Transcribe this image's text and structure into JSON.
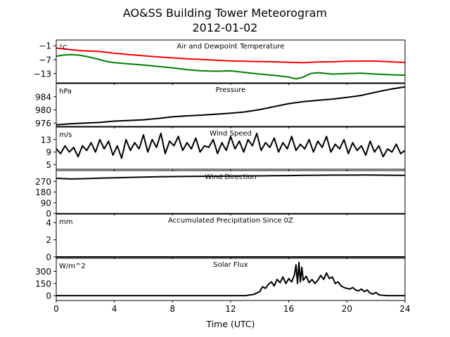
{
  "figure": {
    "title_line1": "AO&SS Building Tower Meteorogram",
    "title_line2": "2012-01-02",
    "xlabel": "Time (UTC)",
    "xticks": [
      0,
      4,
      8,
      12,
      16,
      20,
      24
    ],
    "xlim": [
      0,
      24
    ]
  },
  "chart_data": [
    {
      "type": "line",
      "title": "Air and Dewpoint Temperature",
      "unit": "°C",
      "ylim": [
        -17,
        1.5
      ],
      "yticks": [
        -1,
        -7,
        -13
      ],
      "colors": [
        "#ff0000",
        "#008000"
      ],
      "series": [
        {
          "x": [
            0,
            0.5,
            1,
            1.5,
            2,
            2.5,
            3,
            3.5,
            4,
            5,
            6,
            7,
            8,
            9,
            10,
            11,
            12,
            13,
            14,
            15,
            16,
            17,
            18,
            19,
            20,
            21,
            22,
            23,
            24
          ],
          "values": [
            -2.0,
            -2.3,
            -2.7,
            -3.0,
            -3.2,
            -3.3,
            -3.5,
            -3.8,
            -4.2,
            -4.8,
            -5.3,
            -5.8,
            -6.2,
            -6.6,
            -6.9,
            -7.2,
            -7.5,
            -7.7,
            -7.8,
            -7.9,
            -8.1,
            -8.3,
            -8.0,
            -7.9,
            -7.7,
            -7.6,
            -7.6,
            -7.9,
            -8.2
          ]
        },
        {
          "x": [
            0,
            0.5,
            1,
            1.5,
            2,
            2.5,
            3,
            3.5,
            4,
            5,
            6,
            7,
            8,
            9,
            10,
            11,
            12,
            13,
            14,
            15,
            16,
            16.5,
            17,
            17.5,
            18,
            19,
            20,
            21,
            22,
            23,
            24
          ],
          "values": [
            -5.5,
            -5.0,
            -4.8,
            -5.0,
            -5.5,
            -6.2,
            -7.0,
            -7.8,
            -8.3,
            -8.8,
            -9.3,
            -9.9,
            -10.5,
            -11.3,
            -11.8,
            -12.0,
            -11.8,
            -12.5,
            -13.2,
            -13.8,
            -14.5,
            -15.3,
            -14.5,
            -13.0,
            -12.6,
            -13.2,
            -13.0,
            -12.8,
            -13.2,
            -13.5,
            -13.7
          ]
        }
      ]
    },
    {
      "type": "line",
      "title": "Pressure",
      "unit": "hPa",
      "ylim": [
        975,
        988
      ],
      "yticks": [
        976,
        980,
        984
      ],
      "series": [
        {
          "x": [
            0,
            1,
            2,
            3,
            4,
            5,
            6,
            7,
            8,
            9,
            10,
            11,
            12,
            13,
            14,
            15,
            16,
            17,
            18,
            19,
            20,
            21,
            22,
            23,
            24
          ],
          "values": [
            975.5,
            975.8,
            976.0,
            976.2,
            976.6,
            976.8,
            977.0,
            977.4,
            977.9,
            978.2,
            978.4,
            978.7,
            979.0,
            979.4,
            980.1,
            981.0,
            981.9,
            982.5,
            982.9,
            983.3,
            983.8,
            984.4,
            985.4,
            986.3,
            987.0
          ]
        }
      ]
    },
    {
      "type": "line",
      "title": "Wind Speed",
      "unit": "m/s",
      "ylim": [
        3.5,
        17
      ],
      "yticks": [
        5,
        9,
        13
      ],
      "series": [
        {
          "x": [
            0,
            0.3,
            0.6,
            0.9,
            1.2,
            1.5,
            1.8,
            2.1,
            2.4,
            2.7,
            3,
            3.3,
            3.6,
            3.9,
            4.2,
            4.5,
            4.8,
            5.1,
            5.4,
            5.7,
            6,
            6.3,
            6.6,
            6.9,
            7.2,
            7.5,
            7.8,
            8.1,
            8.4,
            8.7,
            9,
            9.3,
            9.6,
            9.9,
            10.2,
            10.5,
            10.8,
            11.1,
            11.4,
            11.7,
            12,
            12.3,
            12.6,
            12.9,
            13.2,
            13.5,
            13.8,
            14.1,
            14.4,
            14.7,
            15,
            15.3,
            15.6,
            15.9,
            16.2,
            16.5,
            16.8,
            17.1,
            17.4,
            17.7,
            18,
            18.3,
            18.6,
            18.9,
            19.2,
            19.5,
            19.8,
            20.1,
            20.4,
            20.7,
            21,
            21.3,
            21.6,
            21.9,
            22.2,
            22.5,
            22.8,
            23.1,
            23.4,
            23.7,
            24
          ],
          "values": [
            10,
            8.5,
            11,
            9,
            10.5,
            7.5,
            11,
            9.5,
            12,
            9,
            13,
            10,
            12.5,
            8,
            11,
            7,
            13,
            9.5,
            12,
            10,
            14.5,
            9,
            13,
            10.5,
            15,
            8.5,
            12.5,
            11,
            14,
            9.5,
            12,
            10,
            13.5,
            9,
            11,
            10.5,
            13,
            8.5,
            12,
            9.5,
            14,
            10,
            12.5,
            9,
            13,
            11,
            15,
            9.5,
            12,
            10.5,
            13.5,
            9,
            12,
            10,
            14,
            9.5,
            11.5,
            10,
            13,
            9,
            12.5,
            10.5,
            14,
            9,
            11.5,
            10,
            13,
            8.5,
            12,
            9.5,
            11,
            8,
            12.5,
            9,
            11,
            7.5,
            10,
            9,
            11.5,
            8.5,
            9.5
          ]
        }
      ]
    },
    {
      "type": "line",
      "title": "Wind Direction",
      "unit": "",
      "ylim": [
        0,
        360
      ],
      "yticks": [
        0,
        90,
        180,
        270
      ],
      "series": [
        {
          "x": [
            0,
            1,
            2,
            3,
            4,
            5,
            6,
            7,
            8,
            9,
            10,
            11,
            12,
            13,
            14,
            15,
            16,
            17,
            18,
            19,
            20,
            21,
            22,
            23,
            24
          ],
          "values": [
            295,
            290,
            292,
            296,
            300,
            303,
            306,
            308,
            310,
            311,
            312,
            313,
            314,
            315,
            316,
            317,
            318,
            320,
            321,
            322,
            322,
            323,
            322,
            321,
            320
          ]
        }
      ]
    },
    {
      "type": "line",
      "title": "Accumulated Precipitation Since 0Z",
      "unit": "mm",
      "ylim": [
        0,
        5
      ],
      "yticks": [
        0,
        2,
        4
      ],
      "series": [
        {
          "x": [
            0,
            24
          ],
          "values": [
            0,
            0
          ]
        }
      ]
    },
    {
      "type": "line",
      "title": "Solar Flux",
      "unit": "W/m^2",
      "ylim": [
        -60,
        460
      ],
      "yticks": [
        0,
        150,
        300
      ],
      "series": [
        {
          "x": [
            0,
            13,
            13.6,
            14,
            14.2,
            14.4,
            14.6,
            14.8,
            15,
            15.2,
            15.4,
            15.6,
            15.8,
            16,
            16.2,
            16.4,
            16.5,
            16.6,
            16.7,
            16.8,
            16.9,
            17,
            17.2,
            17.4,
            17.6,
            17.8,
            18,
            18.2,
            18.4,
            18.6,
            18.8,
            19,
            19.2,
            19.4,
            19.6,
            19.8,
            20,
            20.2,
            20.4,
            20.6,
            20.8,
            21,
            21.2,
            21.4,
            21.6,
            21.8,
            22,
            22.2,
            22.4,
            22.6,
            22.8,
            23,
            24
          ],
          "values": [
            0,
            0,
            15,
            50,
            110,
            90,
            140,
            170,
            120,
            200,
            160,
            230,
            150,
            210,
            170,
            260,
            380,
            150,
            410,
            170,
            350,
            190,
            240,
            160,
            200,
            150,
            190,
            250,
            200,
            280,
            210,
            230,
            150,
            170,
            120,
            100,
            90,
            80,
            100,
            70,
            60,
            80,
            50,
            70,
            30,
            20,
            40,
            10,
            5,
            2,
            0,
            0,
            0
          ]
        }
      ]
    }
  ]
}
